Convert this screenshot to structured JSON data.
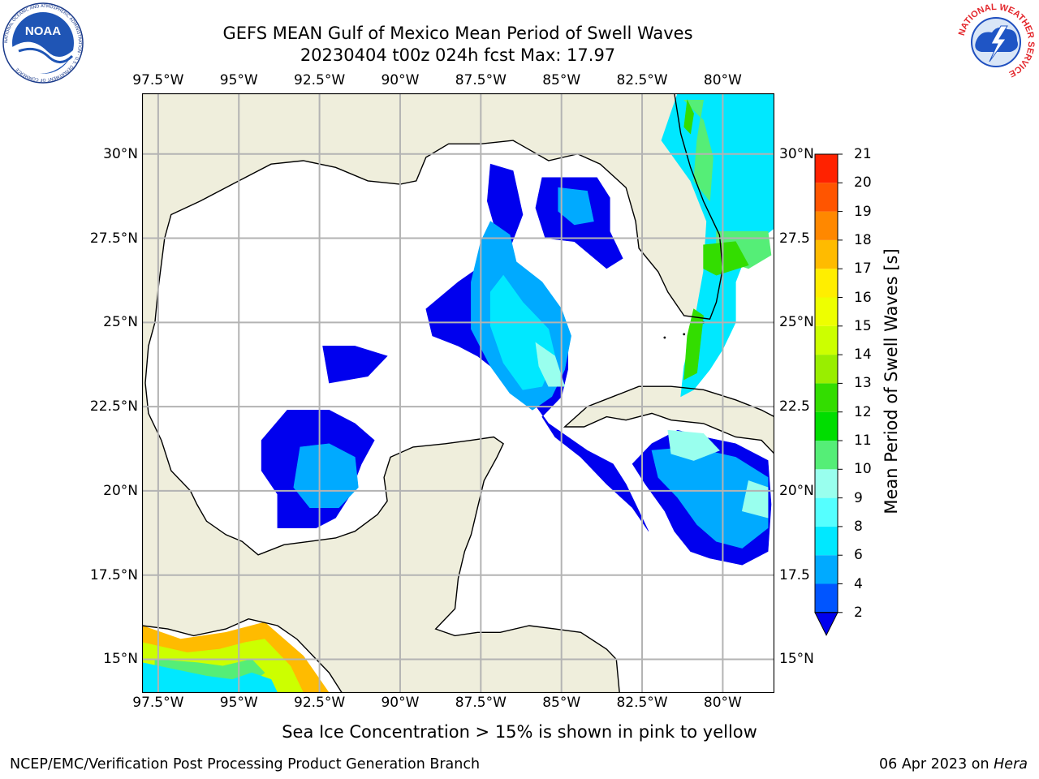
{
  "header": {
    "title_line1": "GEFS MEAN Gulf of Mexico Mean Period of Swell Waves",
    "title_line2": "20230404 t00z 024h fcst   Max: 17.97"
  },
  "logos": {
    "left": {
      "name": "NOAA",
      "ring_text": "NATIONAL OCEANIC AND ATMOSPHERIC ADMINISTRATION · U.S. DEPARTMENT OF COMMERCE"
    },
    "right": {
      "ring_text": "NATIONAL WEATHER SERVICE"
    }
  },
  "map": {
    "lon_ticks": [
      "97.5°W",
      "95°W",
      "92.5°W",
      "90°W",
      "87.5°W",
      "85°W",
      "82.5°W",
      "80°W"
    ],
    "lat_ticks_left": [
      "30°N",
      "27.5°N",
      "25°N",
      "22.5°N",
      "20°N",
      "17.5°N",
      "15°N"
    ],
    "lat_ticks_right": [
      "30°N",
      "27.5",
      "25°N",
      "22.5",
      "20°N",
      "17.5",
      "15°N"
    ],
    "lon_range": [
      -98,
      -78.4
    ],
    "lat_range": [
      14,
      31.8
    ],
    "grid": true,
    "colors": {
      "land": "#efeedc",
      "ocean": "#ffffff",
      "grid": "#b3b3b3",
      "coast": "#000000"
    }
  },
  "colorbar": {
    "title": "Mean Period of Swell Waves [s]",
    "tick_labels": [
      "2",
      "4",
      "6",
      "8",
      "9",
      "10",
      "11",
      "12",
      "13",
      "14",
      "15",
      "16",
      "17",
      "18",
      "19",
      "20",
      "21"
    ],
    "levels": [
      2,
      4,
      6,
      8,
      9,
      10,
      11,
      12,
      13,
      14,
      15,
      16,
      17,
      18,
      19,
      20,
      21
    ],
    "colors": [
      "#0055ff",
      "#00aaff",
      "#00e8ff",
      "#55ffff",
      "#99ffee",
      "#55ee77",
      "#00dd00",
      "#33dd00",
      "#99ee00",
      "#ccff00",
      "#eeff00",
      "#ffee00",
      "#ffbb00",
      "#ff8800",
      "#ff5500",
      "#ff2200",
      "#ff0000"
    ],
    "under_color": "#0000ee"
  },
  "footer": {
    "note": "Sea Ice Concentration > 15% is shown in pink to yellow",
    "left": "NCEP/EMC/Verification Post Processing Product Generation Branch",
    "right_date": "06 Apr 2023 on ",
    "right_host": "Hera"
  },
  "chart_data": {
    "type": "heatmap",
    "title": "GEFS MEAN Gulf of Mexico Mean Period of Swell Waves",
    "subtitle": "20230404 t00z 024h fcst   Max: 17.97",
    "xlim": [
      -98,
      -78.4
    ],
    "ylim": [
      14,
      31.8
    ],
    "colorbar_label": "Mean Period of Swell Waves [s]",
    "max": 17.97,
    "regions": [
      {
        "poly": [
          [
            -87.2,
            29.7
          ],
          [
            -86.5,
            29.5
          ],
          [
            -86.2,
            28.2
          ],
          [
            -86.6,
            27.2
          ],
          [
            -87.6,
            26.6
          ],
          [
            -88.2,
            26.2
          ],
          [
            -89.2,
            25.4
          ],
          [
            -89.0,
            24.6
          ],
          [
            -88.2,
            24.3
          ],
          [
            -87.6,
            24.0
          ],
          [
            -86.8,
            23.4
          ],
          [
            -86.0,
            22.8
          ],
          [
            -85.4,
            22.0
          ],
          [
            -84.8,
            21.6
          ],
          [
            -84.2,
            21.2
          ],
          [
            -83.4,
            20.8
          ],
          [
            -83.0,
            20.2
          ],
          [
            -82.6,
            19.4
          ],
          [
            -82.3,
            18.8
          ],
          [
            -82.8,
            19.5
          ],
          [
            -83.6,
            20.2
          ],
          [
            -84.4,
            21.0
          ],
          [
            -85.2,
            21.6
          ],
          [
            -85.6,
            22.2
          ],
          [
            -85.0,
            22.8
          ],
          [
            -84.8,
            23.6
          ],
          [
            -84.8,
            24.3
          ],
          [
            -85.4,
            25.0
          ],
          [
            -86.0,
            25.8
          ],
          [
            -86.6,
            26.6
          ],
          [
            -87.0,
            27.6
          ],
          [
            -87.3,
            28.6
          ]
        ],
        "v": 1.5
      },
      {
        "poly": [
          [
            -85.6,
            29.3
          ],
          [
            -83.9,
            29.3
          ],
          [
            -83.5,
            28.7
          ],
          [
            -83.5,
            27.7
          ],
          [
            -83.1,
            26.9
          ],
          [
            -83.6,
            26.6
          ],
          [
            -84.6,
            27.4
          ],
          [
            -85.5,
            27.5
          ],
          [
            -85.8,
            28.4
          ]
        ],
        "v": 1.5
      },
      {
        "poly": [
          [
            -93.5,
            22.4
          ],
          [
            -92.2,
            22.4
          ],
          [
            -91.4,
            22.0
          ],
          [
            -90.8,
            21.5
          ],
          [
            -91.2,
            20.8
          ],
          [
            -91.6,
            19.8
          ],
          [
            -92.0,
            19.2
          ],
          [
            -92.6,
            18.9
          ],
          [
            -93.8,
            18.9
          ],
          [
            -93.8,
            19.9
          ],
          [
            -94.3,
            20.6
          ],
          [
            -94.3,
            21.5
          ]
        ],
        "v": 1.5
      },
      {
        "poly": [
          [
            -92.4,
            24.3
          ],
          [
            -91.4,
            24.3
          ],
          [
            -90.4,
            24.0
          ],
          [
            -91.0,
            23.4
          ],
          [
            -92.2,
            23.2
          ]
        ],
        "v": 1.5
      },
      {
        "poly": [
          [
            -81.4,
            21.8
          ],
          [
            -80.6,
            21.6
          ],
          [
            -79.6,
            21.4
          ],
          [
            -78.6,
            20.9
          ],
          [
            -78.5,
            19.6
          ],
          [
            -78.6,
            18.2
          ],
          [
            -79.4,
            17.8
          ],
          [
            -80.4,
            18.0
          ],
          [
            -81.0,
            18.2
          ],
          [
            -81.5,
            18.8
          ],
          [
            -81.8,
            19.4
          ],
          [
            -82.4,
            20.2
          ],
          [
            -82.8,
            20.8
          ],
          [
            -82.2,
            21.4
          ]
        ],
        "v": 1.5
      },
      {
        "poly": [
          [
            -87.2,
            28.0
          ],
          [
            -86.6,
            27.6
          ],
          [
            -86.4,
            26.8
          ],
          [
            -85.6,
            26.2
          ],
          [
            -85.0,
            25.4
          ],
          [
            -84.7,
            24.6
          ],
          [
            -84.9,
            23.6
          ],
          [
            -85.3,
            22.8
          ],
          [
            -85.9,
            22.4
          ],
          [
            -86.6,
            22.9
          ],
          [
            -87.2,
            23.7
          ],
          [
            -87.8,
            24.8
          ],
          [
            -87.8,
            26.2
          ],
          [
            -87.5,
            27.4
          ]
        ],
        "v": 5
      },
      {
        "poly": [
          [
            -85.1,
            29.0
          ],
          [
            -84.2,
            28.9
          ],
          [
            -84.0,
            28.0
          ],
          [
            -84.6,
            27.9
          ],
          [
            -85.1,
            28.3
          ]
        ],
        "v": 5
      },
      {
        "poly": [
          [
            -93.1,
            21.3
          ],
          [
            -92.2,
            21.4
          ],
          [
            -91.4,
            21.0
          ],
          [
            -91.3,
            20.1
          ],
          [
            -91.9,
            19.5
          ],
          [
            -92.8,
            19.5
          ],
          [
            -93.3,
            20.1
          ]
        ],
        "v": 5
      },
      {
        "poly": [
          [
            -82.2,
            21.2
          ],
          [
            -81.0,
            21.3
          ],
          [
            -79.6,
            21.0
          ],
          [
            -78.6,
            20.4
          ],
          [
            -78.6,
            18.9
          ],
          [
            -79.4,
            18.3
          ],
          [
            -80.2,
            18.5
          ],
          [
            -80.8,
            19.0
          ],
          [
            -81.4,
            19.8
          ],
          [
            -82.0,
            20.4
          ]
        ],
        "v": 5
      },
      {
        "poly": [
          [
            -86.8,
            26.4
          ],
          [
            -86.2,
            25.6
          ],
          [
            -85.4,
            24.8
          ],
          [
            -85.2,
            24.0
          ],
          [
            -85.6,
            23.1
          ],
          [
            -86.2,
            23.0
          ],
          [
            -86.8,
            23.8
          ],
          [
            -87.2,
            24.9
          ],
          [
            -87.2,
            25.9
          ]
        ],
        "v": 7
      },
      {
        "poly": [
          [
            -81.9,
            30.4
          ],
          [
            -81.4,
            31.8
          ],
          [
            -78.4,
            31.8
          ],
          [
            -78.4,
            27.8
          ],
          [
            -79.2,
            27.2
          ],
          [
            -79.6,
            26.2
          ],
          [
            -79.6,
            25.0
          ],
          [
            -80.0,
            24.2
          ],
          [
            -80.4,
            23.6
          ],
          [
            -80.9,
            23.0
          ],
          [
            -81.3,
            22.8
          ],
          [
            -81.2,
            23.7
          ],
          [
            -80.9,
            24.9
          ],
          [
            -80.6,
            26.5
          ],
          [
            -80.5,
            28.0
          ],
          [
            -81.0,
            29.2
          ]
        ],
        "v": 7
      },
      {
        "poly": [
          [
            -85.8,
            24.4
          ],
          [
            -85.2,
            24.0
          ],
          [
            -84.9,
            23.1
          ],
          [
            -85.4,
            23.1
          ],
          [
            -85.7,
            23.7
          ]
        ],
        "v": 9.5
      },
      {
        "poly": [
          [
            -81.7,
            21.8
          ],
          [
            -80.6,
            21.7
          ],
          [
            -80.1,
            21.2
          ],
          [
            -80.9,
            20.9
          ],
          [
            -81.6,
            21.1
          ]
        ],
        "v": 9.5
      },
      {
        "poly": [
          [
            -79.2,
            20.3
          ],
          [
            -78.6,
            20.1
          ],
          [
            -78.6,
            19.2
          ],
          [
            -79.4,
            19.4
          ]
        ],
        "v": 9.5
      },
      {
        "poly": [
          [
            -81.2,
            31.6
          ],
          [
            -80.6,
            31.6
          ],
          [
            -80.8,
            30.4
          ],
          [
            -80.9,
            29.2
          ],
          [
            -80.4,
            28.6
          ],
          [
            -80.3,
            29.9
          ],
          [
            -80.6,
            31.0
          ]
        ],
        "v": 10.5
      },
      {
        "poly": [
          [
            -80.2,
            27.7
          ],
          [
            -78.6,
            27.7
          ],
          [
            -78.5,
            27.0
          ],
          [
            -79.2,
            26.6
          ],
          [
            -80.2,
            26.9
          ]
        ],
        "v": 10.5
      },
      {
        "poly": [
          [
            -80.6,
            27.3
          ],
          [
            -79.6,
            27.4
          ],
          [
            -79.2,
            26.7
          ],
          [
            -80.2,
            26.4
          ],
          [
            -80.6,
            26.6
          ]
        ],
        "v": 12.5
      },
      {
        "poly": [
          [
            -80.9,
            25.4
          ],
          [
            -80.6,
            25.2
          ],
          [
            -80.8,
            23.5
          ],
          [
            -81.2,
            23.3
          ],
          [
            -81.1,
            24.6
          ]
        ],
        "v": 12.5
      },
      {
        "poly": [
          [
            -81.1,
            31.6
          ],
          [
            -81.2,
            30.8
          ],
          [
            -81.0,
            30.6
          ],
          [
            -80.9,
            31.2
          ]
        ],
        "v": 12.5
      },
      {
        "poly": [
          [
            -98,
            16.0
          ],
          [
            -96.8,
            15.6
          ],
          [
            -95.4,
            15.8
          ],
          [
            -94.2,
            16.1
          ],
          [
            -93.0,
            15.1
          ],
          [
            -92.2,
            14.0
          ],
          [
            -98,
            14.0
          ]
        ],
        "v": 17
      },
      {
        "poly": [
          [
            -98,
            15.5
          ],
          [
            -96.6,
            15.2
          ],
          [
            -95.6,
            15.3
          ],
          [
            -94.8,
            15.5
          ],
          [
            -94.2,
            15.6
          ],
          [
            -93.4,
            14.8
          ],
          [
            -93.0,
            14.0
          ],
          [
            -98,
            14.0
          ]
        ],
        "v": 14
      },
      {
        "poly": [
          [
            -97.6,
            15.0
          ],
          [
            -96.3,
            14.9
          ],
          [
            -95.5,
            14.8
          ],
          [
            -94.6,
            15.0
          ],
          [
            -94.2,
            14.6
          ],
          [
            -94.6,
            14.3
          ],
          [
            -96.3,
            14.4
          ],
          [
            -97.6,
            14.5
          ]
        ],
        "v": 10.5
      },
      {
        "poly": [
          [
            -98,
            14.9
          ],
          [
            -97.0,
            14.7
          ],
          [
            -96.0,
            14.5
          ],
          [
            -95.2,
            14.4
          ],
          [
            -94.6,
            14.6
          ],
          [
            -94.0,
            14.4
          ],
          [
            -93.8,
            14.0
          ],
          [
            -98,
            14.0
          ]
        ],
        "v": 6
      }
    ]
  }
}
